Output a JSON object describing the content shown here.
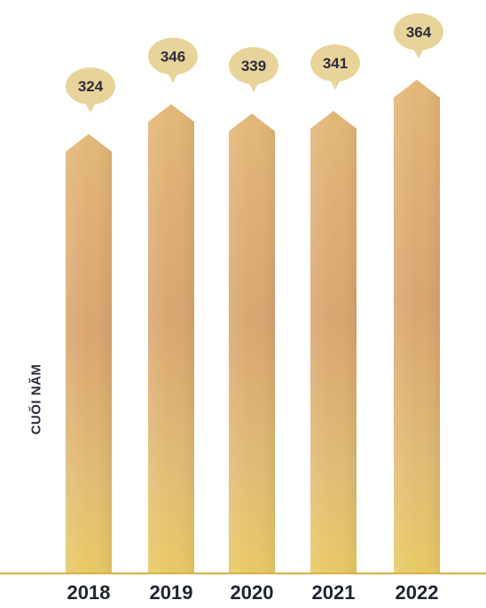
{
  "chart_data": {
    "type": "bar",
    "categories": [
      "2018",
      "2019",
      "2020",
      "2021",
      "2022"
    ],
    "values": [
      324,
      346,
      339,
      341,
      364
    ],
    "ylabel": "CUỐI NĂM",
    "legend": "none",
    "grid": false,
    "value_labels": "callout bubbles above bars",
    "colors": {
      "bar_top": "#e3b778",
      "bar_mid": "#d9a570",
      "bar_bottom": "#e6c36a",
      "bubble": "#e8d49a",
      "label_text": "#2c2c3c",
      "baseline": "#d7b24a"
    }
  }
}
